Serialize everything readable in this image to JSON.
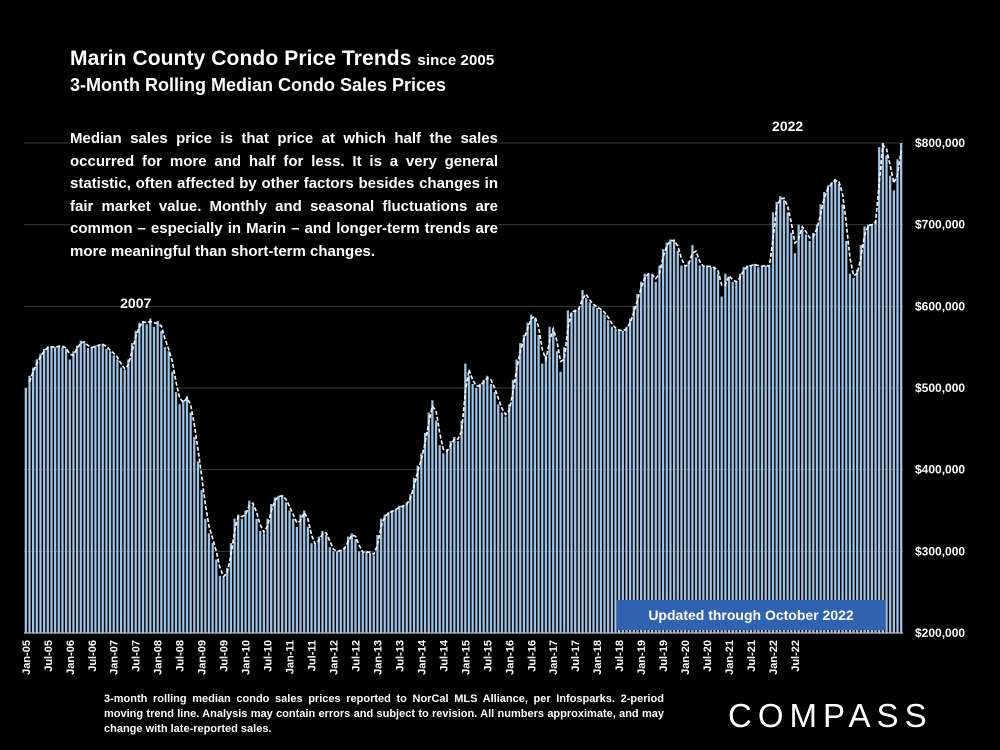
{
  "header": {
    "title": "Marin County Condo Price Trends",
    "title_suffix": "since 2005",
    "subtitle": "3-Month Rolling Median Condo Sales Prices"
  },
  "description": "Median sales price is that price at which half the sales occurred for more and half for less. It is a very general statistic, often affected by other factors besides changes in fair market value. Monthly and seasonal fluctuations are common – especially in Marin – and longer-term trends are more meaningful than short-term changes.",
  "updated_badge": "Updated through October 2022",
  "footnote": "3-month rolling median condo sales prices reported to NorCal MLS Alliance, per Infosparks. 2-period moving trend line. Analysis may contain errors and subject to revision. All numbers approximate, and may change with late-reported sales.",
  "logo": "COMPASS",
  "colors": {
    "bar": "#9dc3e6",
    "trend": "#ffffff",
    "grid": "#3a3a3a",
    "badge": "#2f62b0"
  },
  "chart_data": {
    "type": "bar",
    "start_month": "Jan-05",
    "end_month": "Oct-22",
    "trend_line": "2-period moving average",
    "grid": true,
    "ylim": [
      200000,
      800000
    ],
    "y_ticks": [
      "$200,000",
      "$300,000",
      "$400,000",
      "$500,000",
      "$600,000",
      "$700,000",
      "$800,000"
    ],
    "x_ticks": [
      "Jan-05",
      "Jul-05",
      "Jan-06",
      "Jul-06",
      "Jan-07",
      "Jul-07",
      "Jan-08",
      "Jul-08",
      "Jan-09",
      "Jul-09",
      "Jan-10",
      "Jul-10",
      "Jan-11",
      "Jul-11",
      "Jan-12",
      "Jul-12",
      "Jan-13",
      "Jul-13",
      "Jan-14",
      "Jul-14",
      "Jan-15",
      "Jul-15",
      "Jan-16",
      "Jul-16",
      "Jan-17",
      "Jul-17",
      "Jan-18",
      "Jul-18",
      "Jan-19",
      "Jul-19",
      "Jan-20",
      "Jul-20",
      "Jan-21",
      "Jul-21",
      "Jan-22",
      "Jul-22"
    ],
    "annotations": [
      {
        "text": "2007",
        "x": "Jul-07"
      },
      {
        "text": "2022",
        "x": "May-22"
      }
    ],
    "values": [
      500000,
      515000,
      525000,
      535000,
      542000,
      548000,
      551000,
      550000,
      550000,
      552000,
      550000,
      548000,
      535000,
      545000,
      552000,
      558000,
      555000,
      549000,
      550000,
      552000,
      553000,
      554000,
      548000,
      545000,
      540000,
      535000,
      525000,
      522000,
      535000,
      555000,
      570000,
      580000,
      582000,
      578000,
      585000,
      575000,
      582000,
      570000,
      550000,
      545000,
      520000,
      495000,
      480000,
      485000,
      490000,
      470000,
      440000,
      410000,
      375000,
      340000,
      322000,
      310000,
      290000,
      270000,
      268000,
      280000,
      310000,
      340000,
      345000,
      340000,
      350000,
      362000,
      356000,
      340000,
      325000,
      322000,
      340000,
      358000,
      366000,
      368000,
      368000,
      360000,
      350000,
      340000,
      330000,
      345000,
      350000,
      330000,
      310000,
      308000,
      318000,
      325000,
      320000,
      305000,
      300000,
      300000,
      302000,
      305000,
      318000,
      322000,
      315000,
      300000,
      298000,
      300000,
      298000,
      295000,
      320000,
      340000,
      345000,
      348000,
      350000,
      352000,
      356000,
      355000,
      360000,
      370000,
      390000,
      405000,
      420000,
      445000,
      470000,
      485000,
      460000,
      430000,
      420000,
      425000,
      435000,
      440000,
      435000,
      460000,
      530000,
      515000,
      505000,
      500000,
      505000,
      510000,
      515000,
      505000,
      495000,
      480000,
      470000,
      465000,
      480000,
      510000,
      535000,
      555000,
      565000,
      580000,
      590000,
      585000,
      565000,
      530000,
      540000,
      575000,
      570000,
      545000,
      520000,
      550000,
      595000,
      592000,
      596000,
      598000,
      620000,
      610000,
      605000,
      600000,
      598000,
      595000,
      590000,
      583000,
      575000,
      572000,
      570000,
      570000,
      575000,
      585000,
      600000,
      615000,
      630000,
      640000,
      640000,
      638000,
      630000,
      650000,
      670000,
      678000,
      682000,
      680000,
      668000,
      650000,
      648000,
      655000,
      675000,
      660000,
      650000,
      648000,
      650000,
      648000,
      647000,
      640000,
      612000,
      640000,
      635000,
      630000,
      630000,
      640000,
      648000,
      650000,
      650000,
      652000,
      648000,
      650000,
      650000,
      648000,
      715000,
      728000,
      735000,
      730000,
      715000,
      690000,
      665000,
      700000,
      695000,
      688000,
      680000,
      690000,
      700000,
      725000,
      740000,
      748000,
      752000,
      756000,
      750000,
      725000,
      680000,
      640000,
      635000,
      645000,
      675000,
      698000,
      700000,
      700000,
      705000,
      795000,
      800000,
      785000,
      760000,
      742000,
      780000,
      800000
    ]
  }
}
